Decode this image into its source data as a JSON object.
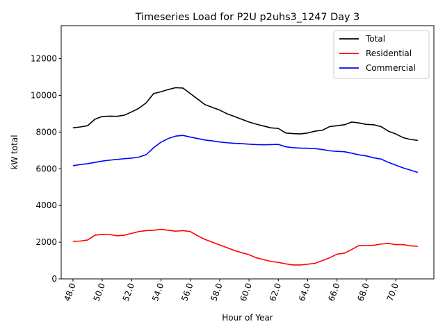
{
  "chart_data": {
    "type": "line",
    "title": "Timeseries Load for P2U p2uhs3_1247  Day 3",
    "xlabel": "Hour of Year",
    "ylabel": "kW total",
    "xlim": [
      47.2,
      72.6
    ],
    "ylim": [
      0,
      13800
    ],
    "x_ticks": [
      48,
      50,
      52,
      54,
      56,
      58,
      60,
      62,
      64,
      66,
      68,
      70
    ],
    "x_tick_labels": [
      "48.0",
      "50.0",
      "52.0",
      "54.0",
      "56.0",
      "58.0",
      "60.0",
      "62.0",
      "64.0",
      "66.0",
      "68.0",
      "70.0"
    ],
    "y_ticks": [
      0,
      2000,
      4000,
      6000,
      8000,
      10000,
      12000
    ],
    "y_tick_labels": [
      "0",
      "2000",
      "4000",
      "6000",
      "8000",
      "10000",
      "12000"
    ],
    "legend_position": "top-right",
    "x": [
      48.0,
      48.5,
      49.0,
      49.5,
      50.0,
      50.5,
      51.0,
      51.5,
      52.0,
      52.5,
      53.0,
      53.5,
      54.0,
      54.5,
      55.0,
      55.5,
      56.0,
      56.5,
      57.0,
      57.5,
      58.0,
      58.5,
      59.0,
      59.5,
      60.0,
      60.5,
      61.0,
      61.5,
      62.0,
      62.5,
      63.0,
      63.5,
      64.0,
      64.5,
      65.0,
      65.5,
      66.0,
      66.5,
      67.0,
      67.5,
      68.0,
      68.5,
      69.0,
      69.5,
      70.0,
      70.5,
      71.0,
      71.5
    ],
    "series": [
      {
        "name": "Total",
        "color": "#000000",
        "values": [
          8230,
          8280,
          8350,
          8700,
          8850,
          8870,
          8860,
          8920,
          9100,
          9300,
          9600,
          10100,
          10200,
          10320,
          10420,
          10400,
          10100,
          9800,
          9500,
          9350,
          9200,
          9000,
          8850,
          8700,
          8550,
          8430,
          8330,
          8230,
          8200,
          7950,
          7920,
          7900,
          7950,
          8050,
          8100,
          8300,
          8350,
          8400,
          8550,
          8500,
          8420,
          8400,
          8300,
          8050,
          7900,
          7700,
          7600,
          7550
        ]
      },
      {
        "name": "Residential",
        "color": "#ff0000",
        "values": [
          2050,
          2060,
          2120,
          2380,
          2430,
          2420,
          2350,
          2380,
          2480,
          2580,
          2630,
          2650,
          2700,
          2650,
          2600,
          2630,
          2580,
          2350,
          2150,
          2000,
          1850,
          1700,
          1550,
          1430,
          1320,
          1150,
          1050,
          950,
          900,
          820,
          760,
          760,
          800,
          850,
          1000,
          1150,
          1350,
          1400,
          1600,
          1820,
          1810,
          1830,
          1900,
          1930,
          1870,
          1870,
          1800,
          1780
        ]
      },
      {
        "name": "Commercial",
        "color": "#0000ff",
        "values": [
          6170,
          6230,
          6280,
          6350,
          6420,
          6470,
          6510,
          6550,
          6580,
          6640,
          6770,
          7150,
          7450,
          7650,
          7780,
          7820,
          7730,
          7650,
          7570,
          7520,
          7460,
          7420,
          7390,
          7370,
          7340,
          7320,
          7310,
          7320,
          7330,
          7200,
          7150,
          7130,
          7120,
          7100,
          7050,
          6980,
          6950,
          6930,
          6850,
          6760,
          6700,
          6600,
          6530,
          6350,
          6200,
          6050,
          5930,
          5800
        ]
      }
    ]
  }
}
